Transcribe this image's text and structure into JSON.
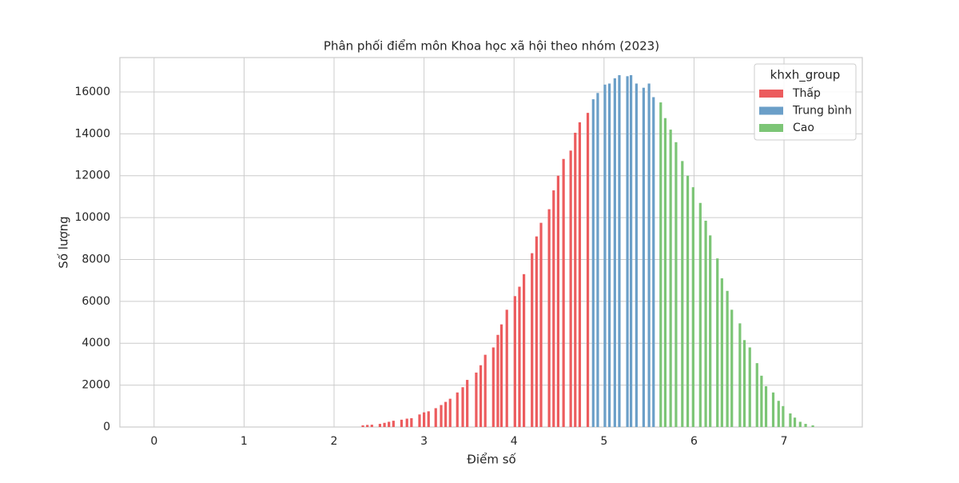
{
  "chart_data": {
    "type": "bar",
    "title": "Phân phối điểm môn Khoa học xã hội theo nhóm (2023)",
    "x_label": "Điểm số",
    "y_label": "Số lượng",
    "legend_title": "khxh_group",
    "legend_position": "upper right",
    "grid": true,
    "xlim": [
      -0.38,
      7.87
    ],
    "xticks": [
      0,
      1,
      2,
      3,
      4,
      5,
      6,
      7
    ],
    "ylim": [
      0,
      17640
    ],
    "yticks": [
      0,
      2000,
      4000,
      6000,
      8000,
      10000,
      12000,
      14000,
      16000
    ],
    "series": [
      {
        "name": "Thấp",
        "color": "#ec5c5e",
        "x": [
          2.32,
          2.37,
          2.42,
          2.51,
          2.56,
          2.61,
          2.66,
          2.75,
          2.81,
          2.86,
          2.95,
          3.0,
          3.05,
          3.13,
          3.19,
          3.24,
          3.29,
          3.37,
          3.43,
          3.48,
          3.58,
          3.63,
          3.68,
          3.77,
          3.82,
          3.86,
          3.92,
          4.01,
          4.06,
          4.11,
          4.2,
          4.25,
          4.3,
          4.39,
          4.44,
          4.49,
          4.55,
          4.63,
          4.68,
          4.73,
          4.82
        ],
        "values": [
          80,
          100,
          110,
          150,
          200,
          250,
          300,
          350,
          400,
          420,
          600,
          700,
          750,
          900,
          1050,
          1200,
          1350,
          1650,
          1900,
          2250,
          2600,
          2950,
          3450,
          3800,
          4400,
          4900,
          5600,
          6250,
          6700,
          7300,
          8300,
          9100,
          9750,
          10400,
          11300,
          12000,
          12800,
          13200,
          14050,
          14550,
          15000
        ]
      },
      {
        "name": "Trung bình",
        "color": "#6b9fc8",
        "x": [
          4.88,
          4.93,
          5.01,
          5.06,
          5.12,
          5.17,
          5.26,
          5.3,
          5.36,
          5.44,
          5.5,
          5.55
        ],
        "values": [
          15650,
          15950,
          16350,
          16400,
          16650,
          16800,
          16750,
          16800,
          16400,
          16200,
          16400,
          15750
        ]
      },
      {
        "name": "Cao",
        "color": "#7cc576",
        "x": [
          5.63,
          5.68,
          5.74,
          5.8,
          5.87,
          5.93,
          5.99,
          6.07,
          6.13,
          6.18,
          6.26,
          6.31,
          6.37,
          6.42,
          6.51,
          6.56,
          6.62,
          6.7,
          6.75,
          6.8,
          6.88,
          6.94,
          6.99,
          7.07,
          7.12,
          7.18,
          7.24,
          7.32
        ],
        "values": [
          15500,
          14750,
          14200,
          13600,
          12700,
          12000,
          11450,
          10700,
          9850,
          9150,
          8050,
          7100,
          6500,
          5600,
          4950,
          4150,
          3800,
          3050,
          2450,
          1950,
          1650,
          1250,
          1000,
          650,
          450,
          250,
          150,
          80
        ]
      }
    ]
  }
}
